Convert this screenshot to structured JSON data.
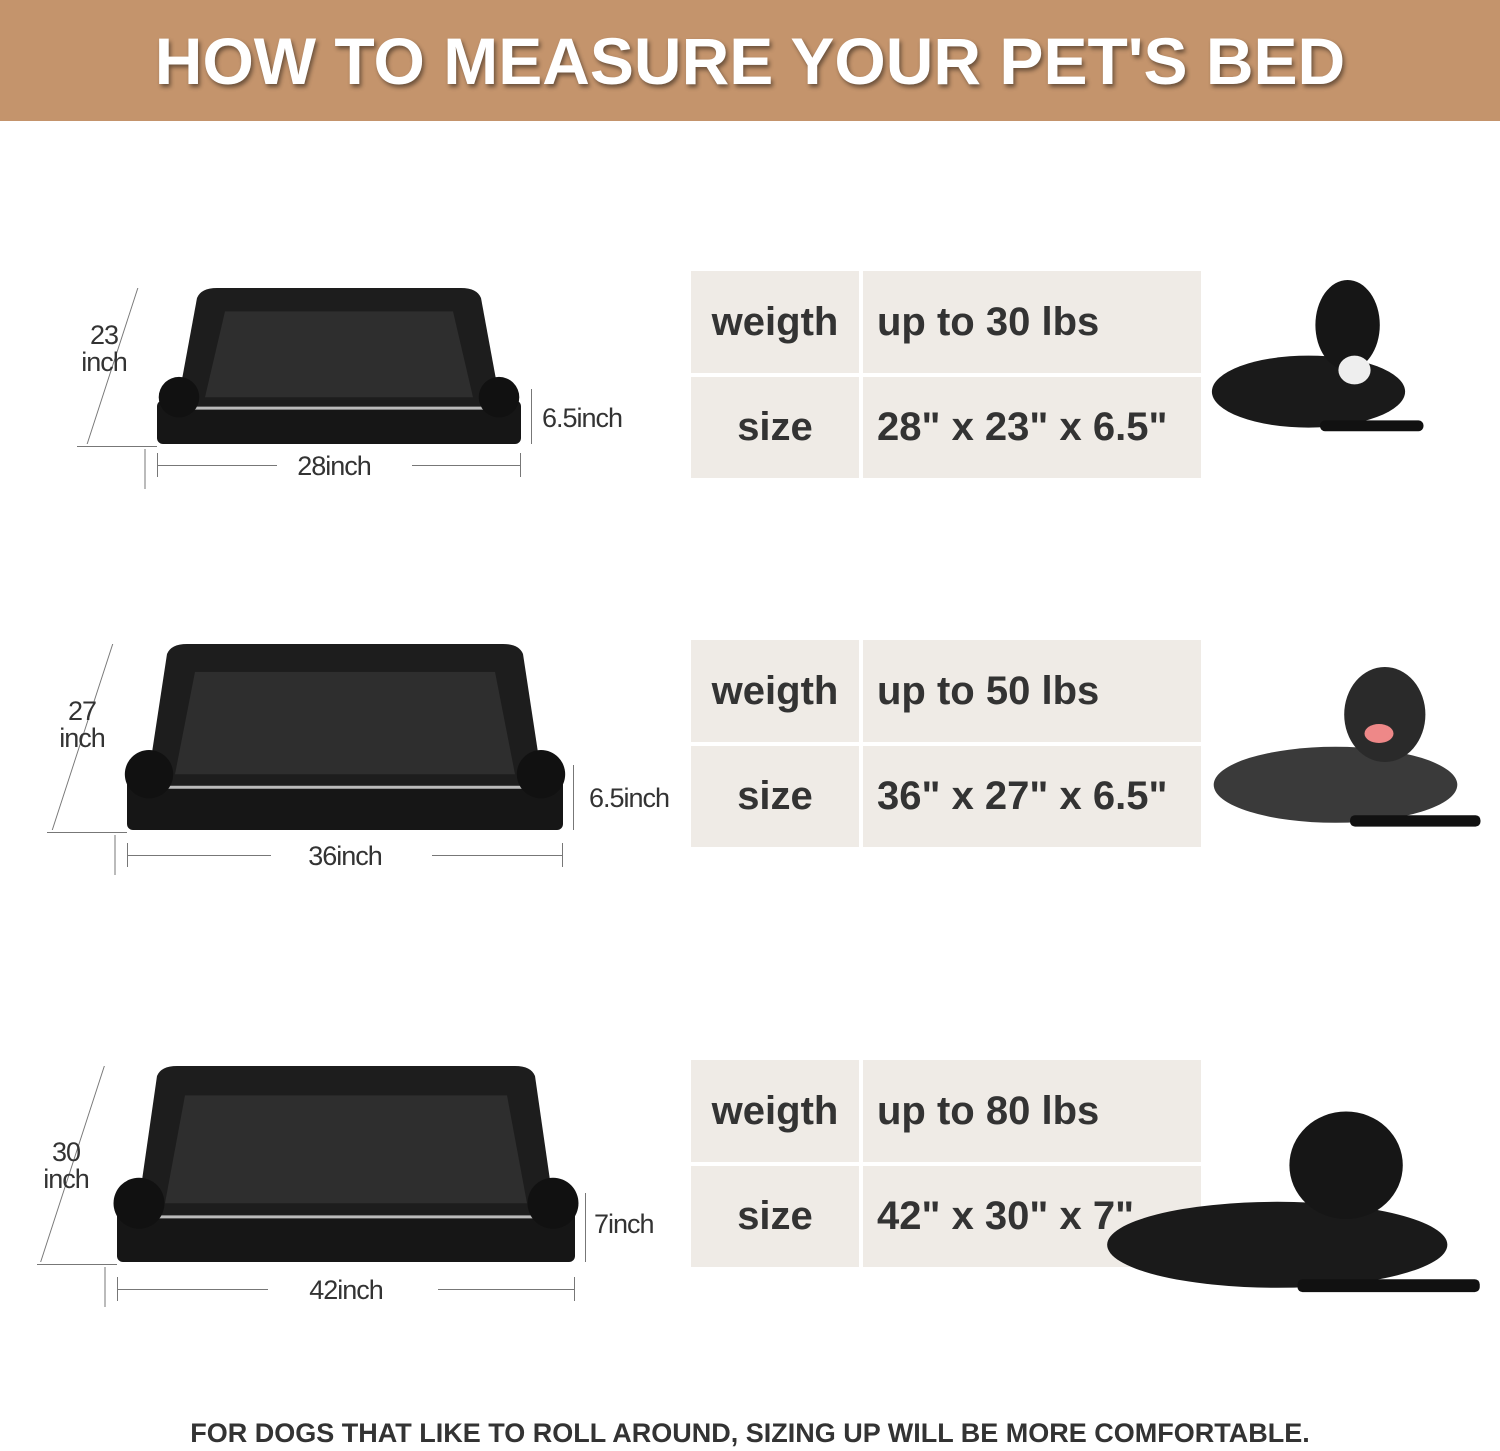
{
  "header": {
    "title": "HOW TO MEASURE YOUR PET'S BED",
    "color": "#c4946c"
  },
  "sizes": [
    {
      "depth_num": "23",
      "depth_unit": "inch",
      "height": "6.5inch",
      "width": "28inch",
      "weight_label": "weigth",
      "weight_value": "up to 30 lbs",
      "size_label": "size",
      "size_value": "28\" x 23\" x 6.5\"",
      "dog": "french-bulldog"
    },
    {
      "depth_num": "27",
      "depth_unit": "inch",
      "height": "6.5inch",
      "width": "36inch",
      "weight_label": "weigth",
      "weight_value": "up to 50 lbs",
      "size_label": "size",
      "size_value": "36\" x 27\" x 6.5\"",
      "dog": "spaniel"
    },
    {
      "depth_num": "30",
      "depth_unit": "inch",
      "height": "7inch",
      "width": "42inch",
      "weight_label": "weigth",
      "weight_value": "up to 80 lbs",
      "size_label": "size",
      "size_value": "42\" x 30\" x 7\"",
      "dog": "labrador"
    }
  ],
  "table_color": "#efebe6",
  "footer": {
    "text": "FOR DOGS THAT LIKE TO ROLL AROUND, SIZING UP WILL BE MORE COMFORTABLE."
  }
}
